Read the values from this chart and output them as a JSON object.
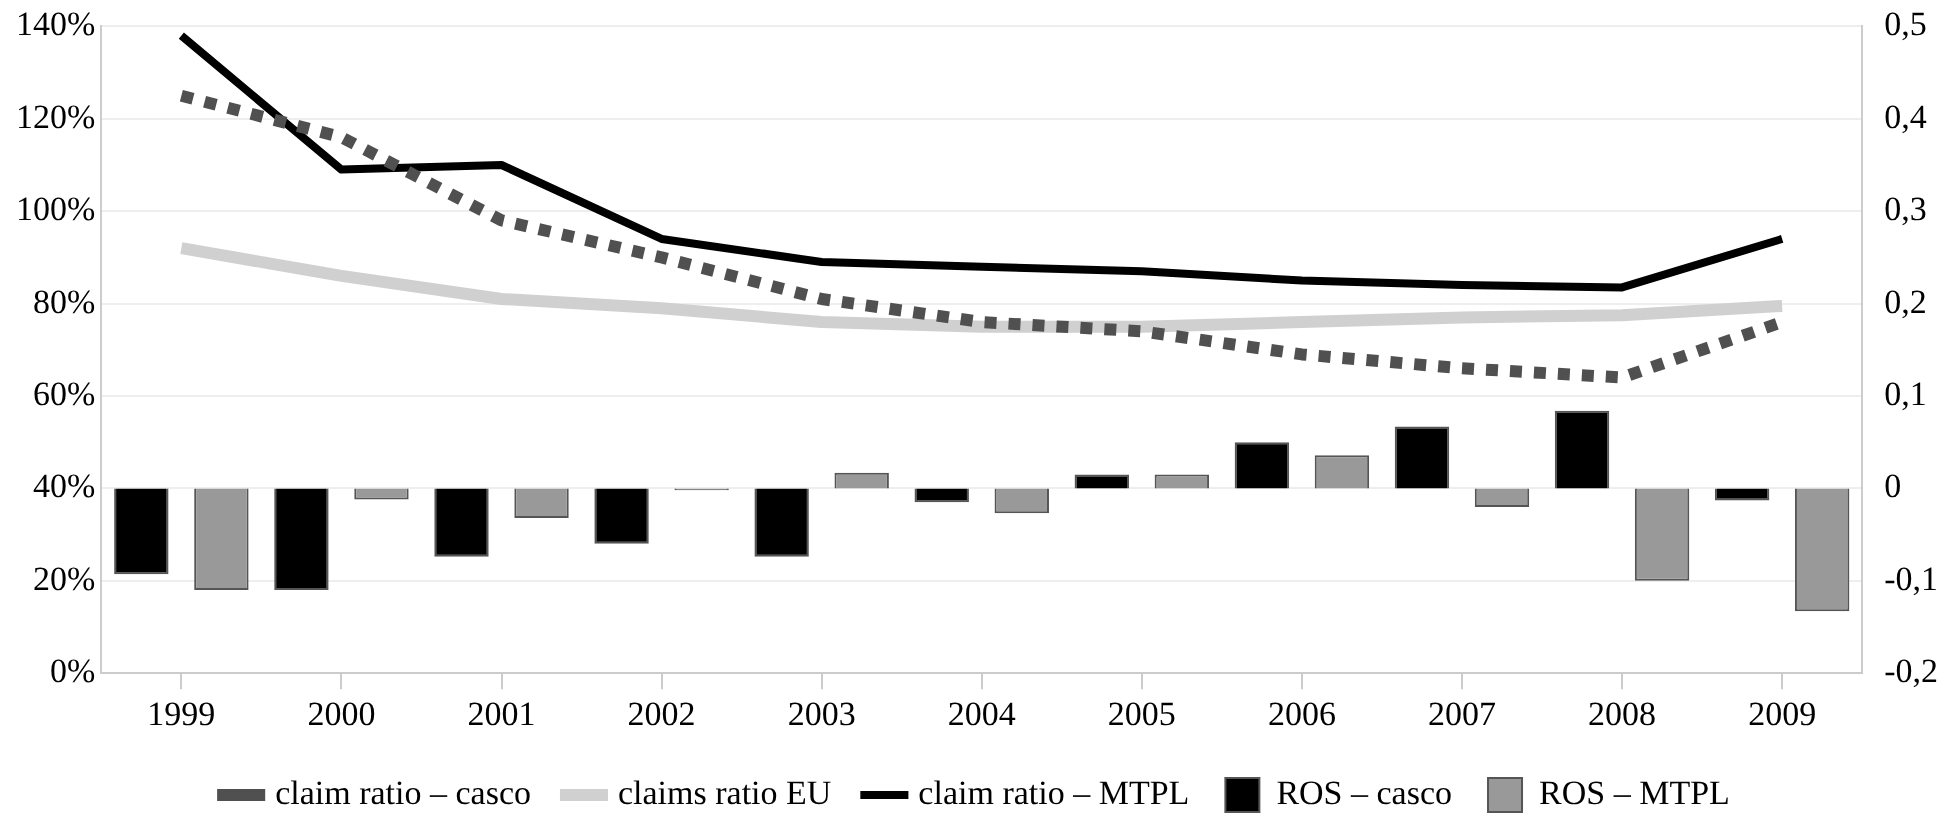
{
  "chart_data": {
    "type": "bar",
    "categories": [
      "1999",
      "2000",
      "2001",
      "2002",
      "2003",
      "2004",
      "2005",
      "2006",
      "2007",
      "2008",
      "2009"
    ],
    "series": [
      {
        "name": "claim ratio – casco",
        "type": "line",
        "line_style": "dotted",
        "color": "#505050",
        "values": [
          125,
          116,
          98,
          90,
          81,
          76,
          74,
          69,
          66,
          64,
          76
        ]
      },
      {
        "name": "claims ratio EU",
        "type": "line",
        "color": "#d0d0d0",
        "values": [
          92,
          86,
          81,
          79,
          76,
          75,
          75,
          76,
          77,
          77.5,
          79.5
        ]
      },
      {
        "name": "claim ratio – MTPL",
        "type": "line",
        "color": "#000000",
        "values": [
          138,
          109,
          110,
          94,
          89,
          88,
          87,
          85,
          84,
          83.5,
          94
        ]
      },
      {
        "name": "ROS – casco",
        "type": "bar",
        "axis": "y2",
        "color": "#000000",
        "values": [
          -0.093,
          -0.11,
          -0.074,
          -0.06,
          -0.074,
          -0.015,
          0.015,
          0.05,
          0.067,
          0.084,
          -0.013
        ]
      },
      {
        "name": "ROS – MTPL",
        "type": "bar",
        "axis": "y2",
        "color": "#999999",
        "values": [
          -0.11,
          -0.012,
          -0.032,
          -0.002,
          0.017,
          -0.027,
          0.015,
          0.036,
          -0.02,
          -0.1,
          -0.133
        ]
      }
    ],
    "ylim": [
      0,
      140
    ],
    "yticks": [
      {
        "value": 0,
        "label": "0%"
      },
      {
        "value": 20,
        "label": "20%"
      },
      {
        "value": 40,
        "label": "40%"
      },
      {
        "value": 60,
        "label": "60%"
      },
      {
        "value": 80,
        "label": "80%"
      },
      {
        "value": 100,
        "label": "100%"
      },
      {
        "value": 120,
        "label": "120%"
      },
      {
        "value": 140,
        "label": "140%"
      }
    ],
    "y2lim": [
      -0.2,
      0.5
    ],
    "y2ticks": [
      {
        "value": -0.2,
        "label": "-0,2"
      },
      {
        "value": -0.1,
        "label": "-0,1"
      },
      0,
      {
        "value": 0.1,
        "label": "0,1"
      },
      {
        "value": 0.2,
        "label": "0,2"
      },
      {
        "value": 0.3,
        "label": "0,3"
      },
      {
        "value": 0.4,
        "label": "0,4"
      },
      {
        "value": 0.5,
        "label": "0,5"
      }
    ],
    "grid": "y",
    "legend": "bottom",
    "marker": "none"
  }
}
